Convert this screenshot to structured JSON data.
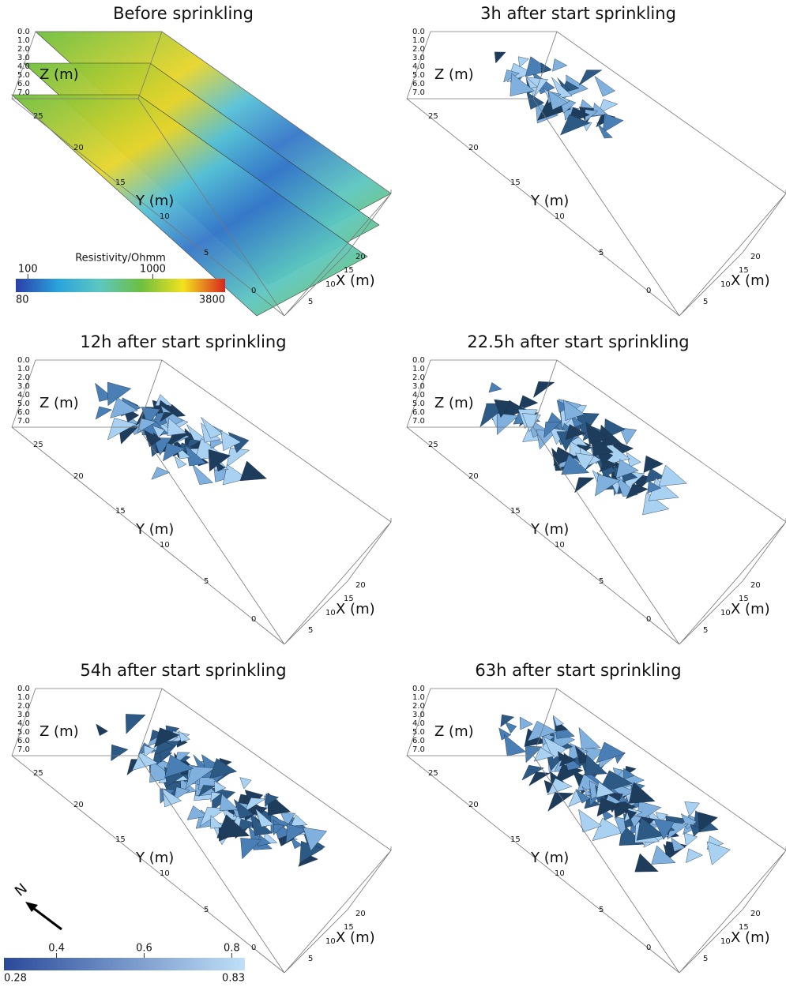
{
  "panels": [
    {
      "title": "Before sprinkling"
    },
    {
      "title": "3h after start sprinkling"
    },
    {
      "title": "12h after start sprinkling"
    },
    {
      "title": "22.5h after start sprinkling"
    },
    {
      "title": "54h after start sprinkling"
    },
    {
      "title": "63h after start sprinkling"
    }
  ],
  "axes": {
    "z_label": "Z (m)",
    "y_label": "Y (m)",
    "x_label": "X (m)",
    "z_ticks": [
      "0.0",
      "1.0",
      "2.0",
      "3.0",
      "4.0",
      "5.0",
      "6.0",
      "7.0"
    ],
    "y_ticks": [
      "25",
      "20",
      "15",
      "10",
      "5",
      "0"
    ],
    "x_ticks": [
      "20",
      "15",
      "10",
      "5"
    ]
  },
  "resistivity_colorbar": {
    "title": "Resistivity/Ohmm",
    "min": 80,
    "max": 3800,
    "ticks": [
      100,
      1000
    ],
    "log": true
  },
  "ratio_colorbar": {
    "min": 0.28,
    "max": 0.83,
    "ticks": [
      0.4,
      0.6,
      0.8
    ],
    "log": false
  },
  "north": "N"
}
